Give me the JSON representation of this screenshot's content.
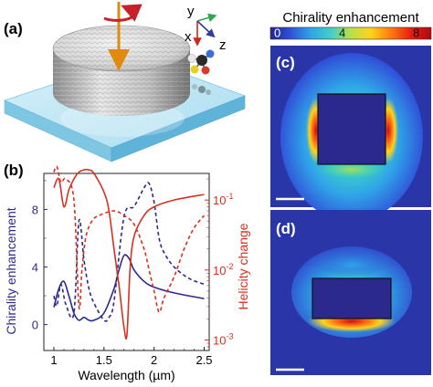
{
  "panels": {
    "a": {
      "label": "(a)",
      "axes": {
        "y": "y",
        "x": "x",
        "z": "z"
      }
    },
    "b": {
      "label": "(b)"
    },
    "c": {
      "label": "(c)"
    },
    "d": {
      "label": "(d)"
    }
  },
  "colorbar": {
    "title": "Chirality enhancement",
    "ticks": [
      "0",
      "4",
      "8"
    ],
    "stops": [
      "#24248f",
      "#3050d8",
      "#2fa4e8",
      "#3ed0c8",
      "#b8e048",
      "#ffd21a",
      "#ff7a10",
      "#e81c10",
      "#b00a10"
    ]
  },
  "chart_data": {
    "type": "line",
    "xlabel": "Wavelength (µm)",
    "ylabel_left": "Chirality enhancement",
    "ylabel_right": "Helicity change",
    "xlim": [
      0.9,
      2.55
    ],
    "ylim_left": [
      -1.8,
      10.5
    ],
    "ylim_right_log": [
      -3.15,
      -0.62
    ],
    "x_ticks": [
      "1",
      "1.5",
      "2",
      "2.5"
    ],
    "y_left_ticks": [
      "0",
      "4",
      "8"
    ],
    "y_right_ticks": [
      {
        "base": "10",
        "exp": "-3",
        "value": -3
      },
      {
        "base": "10",
        "exp": "-2",
        "value": -2
      },
      {
        "base": "10",
        "exp": "-1",
        "value": -1
      }
    ],
    "colors": {
      "left": "#2b2a8c",
      "right": "#d7301f"
    },
    "series": [
      {
        "axis": "left",
        "style": "solid",
        "x": [
          1.0,
          1.05,
          1.1,
          1.15,
          1.2,
          1.25,
          1.3,
          1.35,
          1.4,
          1.5,
          1.6,
          1.65,
          1.7,
          1.75,
          1.8,
          1.9,
          2.0,
          2.2,
          2.5
        ],
        "y": [
          1.2,
          2.5,
          3.0,
          2.0,
          0.8,
          0.3,
          0.5,
          0.3,
          0.3,
          0.8,
          2.5,
          3.8,
          4.8,
          4.6,
          3.8,
          3.0,
          2.6,
          2.2,
          1.8
        ]
      },
      {
        "axis": "left",
        "style": "dash",
        "x": [
          1.0,
          1.03,
          1.07,
          1.12,
          1.2,
          1.25,
          1.3,
          1.35,
          1.4,
          1.5,
          1.55,
          1.6,
          1.7,
          1.8,
          1.9,
          1.95,
          2.0,
          2.05,
          2.1,
          2.2,
          2.35,
          2.5
        ],
        "y": [
          2.0,
          1.3,
          2.8,
          1.4,
          0.8,
          7.2,
          4.5,
          2.5,
          1.5,
          0.3,
          0.5,
          1.6,
          7.5,
          8.2,
          9.5,
          9.8,
          8.5,
          6.0,
          5.0,
          4.0,
          3.2,
          2.8
        ]
      },
      {
        "axis": "right",
        "style": "solid",
        "x": [
          1.0,
          1.05,
          1.1,
          1.15,
          1.2,
          1.25,
          1.3,
          1.35,
          1.4,
          1.5,
          1.55,
          1.6,
          1.65,
          1.7,
          1.73,
          1.76,
          1.8,
          1.9,
          2.0,
          2.2,
          2.5
        ],
        "y": [
          0.15,
          0.2,
          0.08,
          0.14,
          0.2,
          0.25,
          0.27,
          0.27,
          0.24,
          0.13,
          0.07,
          0.02,
          0.006,
          0.0015,
          0.0012,
          0.01,
          0.03,
          0.06,
          0.08,
          0.1,
          0.12
        ]
      },
      {
        "axis": "right",
        "style": "dash",
        "x": [
          1.0,
          1.03,
          1.07,
          1.12,
          1.2,
          1.25,
          1.28,
          1.32,
          1.38,
          1.45,
          1.6,
          1.7,
          1.8,
          1.9,
          1.95,
          2.0,
          2.05,
          2.1,
          2.2,
          2.3,
          2.4,
          2.5
        ],
        "y": [
          0.25,
          0.3,
          0.18,
          0.2,
          0.1,
          0.003,
          0.01,
          0.03,
          0.05,
          0.06,
          0.07,
          0.06,
          0.045,
          0.02,
          0.01,
          0.005,
          0.0025,
          0.004,
          0.008,
          0.02,
          0.04,
          0.06
        ]
      }
    ]
  }
}
